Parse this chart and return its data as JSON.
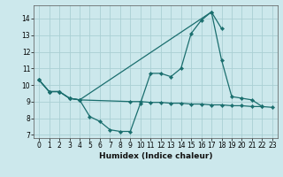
{
  "xlabel": "Humidex (Indice chaleur)",
  "xlim": [
    -0.5,
    23.5
  ],
  "ylim": [
    6.8,
    14.8
  ],
  "yticks": [
    7,
    8,
    9,
    10,
    11,
    12,
    13,
    14
  ],
  "xticks": [
    0,
    1,
    2,
    3,
    4,
    5,
    6,
    7,
    8,
    9,
    10,
    11,
    12,
    13,
    14,
    15,
    16,
    17,
    18,
    19,
    20,
    21,
    22,
    23
  ],
  "background_color": "#cce8ec",
  "grid_color": "#aacfd4",
  "line_color": "#1a6e6e",
  "series": [
    {
      "x": [
        0,
        1,
        2,
        3,
        4,
        5,
        6,
        7,
        8,
        9,
        10,
        11,
        12,
        13,
        14,
        15,
        16,
        17,
        18,
        19,
        20,
        21,
        22
      ],
      "y": [
        10.3,
        9.6,
        9.6,
        9.2,
        9.1,
        8.1,
        7.8,
        7.3,
        7.2,
        7.2,
        8.9,
        10.7,
        10.7,
        10.5,
        11.0,
        13.1,
        13.9,
        14.4,
        11.5,
        9.3,
        9.2,
        9.1,
        8.7
      ]
    },
    {
      "x": [
        0,
        1,
        2,
        3,
        4,
        17,
        18
      ],
      "y": [
        10.3,
        9.6,
        9.6,
        9.2,
        9.1,
        14.4,
        13.4
      ]
    },
    {
      "x": [
        0,
        1,
        2,
        3,
        4,
        9,
        10,
        11,
        12,
        13,
        14,
        15,
        16,
        17,
        18,
        19,
        20,
        21,
        22,
        23
      ],
      "y": [
        10.3,
        9.6,
        9.6,
        9.2,
        9.1,
        9.0,
        9.0,
        8.95,
        8.95,
        8.9,
        8.9,
        8.85,
        8.85,
        8.8,
        8.8,
        8.75,
        8.75,
        8.7,
        8.7,
        8.65
      ]
    }
  ]
}
